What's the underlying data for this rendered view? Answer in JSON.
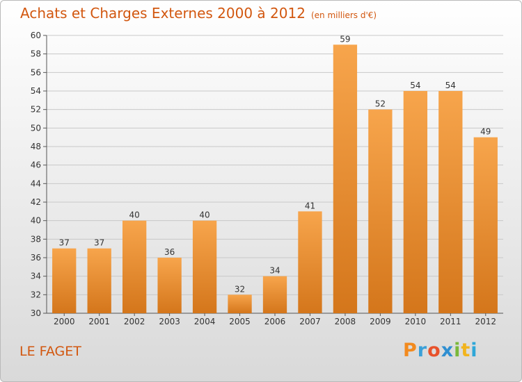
{
  "header": {
    "title": "Achats et Charges Externes 2000 à 2012",
    "unit": "(en milliers d'€)"
  },
  "footer": {
    "place": "LE FAGET",
    "logo_text": "Proxiti"
  },
  "colors": {
    "bar_light": "#f7a54c",
    "bar_dark": "#d4761b",
    "text_accent": "#d2570f"
  },
  "chart_data": {
    "type": "bar",
    "title": "Achats et Charges Externes 2000 à 2012",
    "subtitle": "(en milliers d'€)",
    "xlabel": "",
    "ylabel": "",
    "categories": [
      "2000",
      "2001",
      "2002",
      "2003",
      "2004",
      "2005",
      "2006",
      "2007",
      "2008",
      "2009",
      "2010",
      "2011",
      "2012"
    ],
    "values": [
      37,
      37,
      40,
      36,
      40,
      32,
      34,
      41,
      59,
      52,
      54,
      54,
      49
    ],
    "ylim": [
      30,
      60
    ],
    "yticks": [
      30,
      32,
      34,
      36,
      38,
      40,
      42,
      44,
      46,
      48,
      50,
      52,
      54,
      56,
      58,
      60
    ],
    "grid": true,
    "data_labels": true
  }
}
